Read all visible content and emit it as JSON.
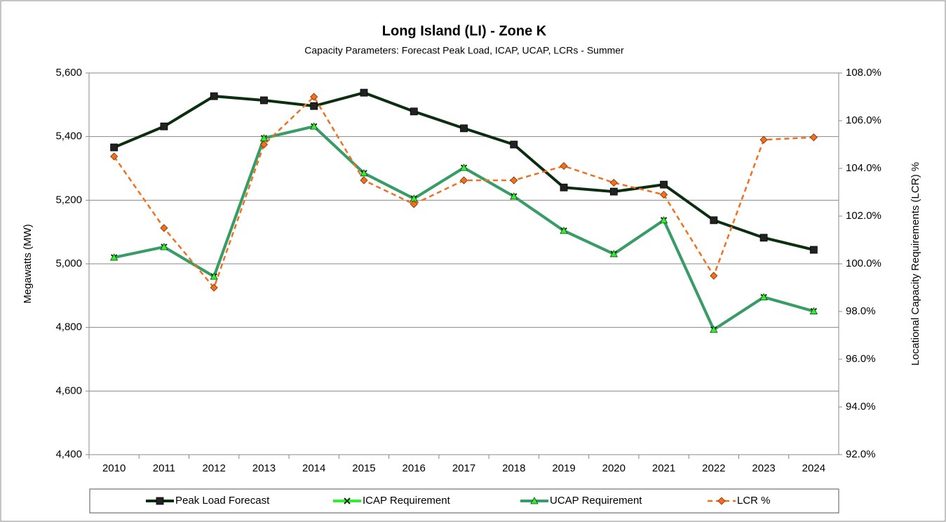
{
  "chart_data": {
    "type": "line",
    "title": "Long Island (LI) - Zone K",
    "subtitle": "Capacity Parameters: Forecast Peak Load, ICAP, UCAP, LCRs - Summer",
    "y_label": "Megawatts (MW)",
    "y2_label": "Locational Capacity Requirements (LCR) %",
    "categories": [
      "2010",
      "2011",
      "2012",
      "2013",
      "2014",
      "2015",
      "2016",
      "2017",
      "2018",
      "2019",
      "2020",
      "2021",
      "2022",
      "2023",
      "2024"
    ],
    "ylim": [
      4400,
      5600
    ],
    "yticks": [
      {
        "value": 4400,
        "label": "4,400"
      },
      {
        "value": 4600,
        "label": "4,600"
      },
      {
        "value": 4800,
        "label": "4,800"
      },
      {
        "value": 5000,
        "label": "5,000"
      },
      {
        "value": 5200,
        "label": "5,200"
      },
      {
        "value": 5400,
        "label": "5,400"
      },
      {
        "value": 5600,
        "label": "5,600"
      }
    ],
    "y2lim": [
      92,
      108
    ],
    "y2ticks": [
      {
        "value": 92,
        "label": "92.0%"
      },
      {
        "value": 94,
        "label": "94.0%"
      },
      {
        "value": 96,
        "label": "96.0%"
      },
      {
        "value": 98,
        "label": "98.0%"
      },
      {
        "value": 100,
        "label": "100.0%"
      },
      {
        "value": 102,
        "label": "102.0%"
      },
      {
        "value": 104,
        "label": "104.0%"
      },
      {
        "value": 106,
        "label": "106.0%"
      },
      {
        "value": 108,
        "label": "108.0%"
      }
    ],
    "grid": true,
    "legend": "bottom",
    "series": [
      {
        "name": "Peak Load Forecast",
        "color": "#0b2e10",
        "marker": "square",
        "dash": "solid",
        "values": [
          5366,
          5432,
          5527,
          5514,
          5496,
          5538,
          5479,
          5426,
          5375,
          5240,
          5227,
          5249,
          5137,
          5082,
          5044
        ]
      },
      {
        "name": "ICAP Requirement",
        "color": "#33ee33",
        "marker": "x",
        "dash": "solid",
        "values": [
          5020,
          5053,
          4960,
          5395,
          5432,
          5285,
          5205,
          5302,
          5212,
          5104,
          5031,
          5137,
          4793,
          4895,
          4851
        ]
      },
      {
        "name": "UCAP Requirement",
        "color": "#3a9a6a",
        "marker": "triangle",
        "dash": "solid",
        "values": [
          5020,
          5053,
          4960,
          5395,
          5432,
          5285,
          5205,
          5302,
          5212,
          5104,
          5031,
          5137,
          4793,
          4895,
          4851
        ]
      },
      {
        "name": "LCR %",
        "color": "#f07020",
        "marker": "diamond",
        "dash": "dashed",
        "axis": "y2",
        "values": [
          104.5,
          101.5,
          99.0,
          105.0,
          107.0,
          103.5,
          102.5,
          103.5,
          103.5,
          104.1,
          103.4,
          102.9,
          99.5,
          105.2,
          105.3
        ]
      }
    ]
  }
}
